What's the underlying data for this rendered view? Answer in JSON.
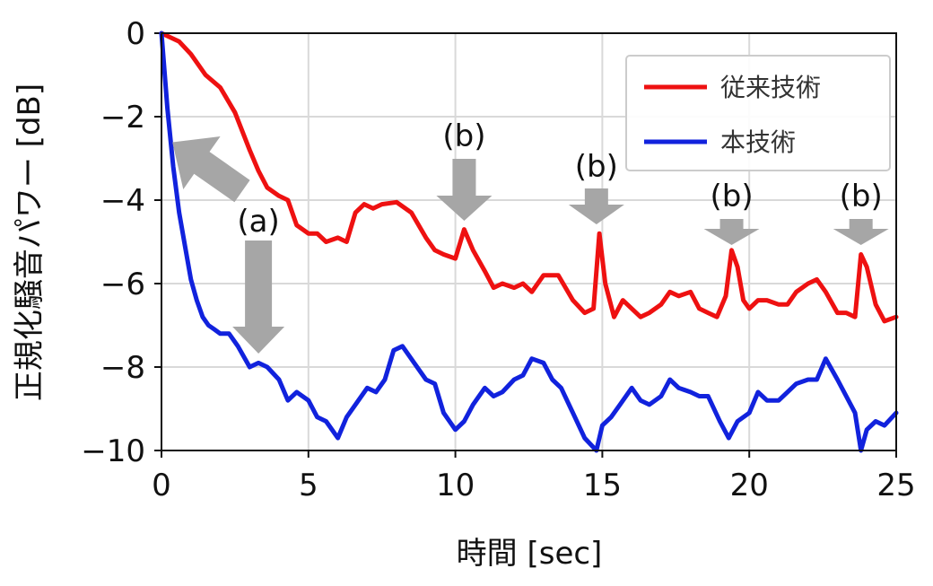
{
  "chart_data": {
    "type": "line",
    "xlabel": "時間 [sec]",
    "ylabel": "正規化騒音パワー [dB]",
    "xlim": [
      0,
      25
    ],
    "ylim": [
      -10,
      0
    ],
    "xticks": [
      "0",
      "5",
      "10",
      "15",
      "20",
      "25"
    ],
    "yticks": [
      "0",
      "−2",
      "−4",
      "−6",
      "−8",
      "−10"
    ],
    "grid": true,
    "legend_placement": "top-right",
    "series": [
      {
        "name": "従来技術",
        "color": "#ee1111",
        "x": [
          0,
          0.3,
          0.6,
          1.0,
          1.5,
          2.0,
          2.5,
          3.0,
          3.3,
          3.6,
          4.0,
          4.3,
          4.6,
          5.0,
          5.3,
          5.6,
          6.0,
          6.3,
          6.6,
          6.9,
          7.2,
          7.5,
          8.0,
          8.5,
          9.0,
          9.3,
          9.6,
          10.0,
          10.3,
          10.6,
          11.0,
          11.3,
          11.6,
          12.0,
          12.3,
          12.6,
          13.0,
          13.5,
          14.0,
          14.4,
          14.7,
          14.9,
          15.1,
          15.4,
          15.7,
          16.0,
          16.3,
          16.6,
          17.0,
          17.3,
          17.6,
          18.0,
          18.3,
          18.6,
          18.9,
          19.2,
          19.4,
          19.6,
          19.8,
          20.0,
          20.3,
          20.6,
          21.0,
          21.3,
          21.6,
          22.0,
          22.3,
          22.6,
          23.0,
          23.3,
          23.6,
          23.8,
          24.0,
          24.3,
          24.6,
          25.0
        ],
        "y": [
          0,
          -0.1,
          -0.2,
          -0.5,
          -1.0,
          -1.3,
          -1.9,
          -2.8,
          -3.3,
          -3.7,
          -3.9,
          -4.0,
          -4.6,
          -4.8,
          -4.8,
          -5.0,
          -4.9,
          -5.0,
          -4.3,
          -4.1,
          -4.2,
          -4.1,
          -4.05,
          -4.3,
          -4.9,
          -5.2,
          -5.3,
          -5.4,
          -4.7,
          -5.2,
          -5.7,
          -6.1,
          -6.0,
          -6.1,
          -6.0,
          -6.2,
          -5.8,
          -5.8,
          -6.4,
          -6.7,
          -6.6,
          -4.8,
          -6.0,
          -6.8,
          -6.4,
          -6.6,
          -6.8,
          -6.7,
          -6.5,
          -6.2,
          -6.3,
          -6.2,
          -6.6,
          -6.7,
          -6.8,
          -6.3,
          -5.2,
          -5.6,
          -6.4,
          -6.6,
          -6.4,
          -6.4,
          -6.5,
          -6.5,
          -6.2,
          -6.0,
          -5.9,
          -6.2,
          -6.7,
          -6.7,
          -6.8,
          -5.3,
          -5.6,
          -6.5,
          -6.9,
          -6.8
        ]
      },
      {
        "name": "本技術",
        "color": "#1122dd",
        "x": [
          0,
          0.2,
          0.4,
          0.6,
          0.8,
          1.0,
          1.2,
          1.4,
          1.6,
          1.8,
          2.0,
          2.3,
          2.6,
          3.0,
          3.3,
          3.6,
          4.0,
          4.3,
          4.6,
          5.0,
          5.3,
          5.6,
          6.0,
          6.3,
          6.6,
          7.0,
          7.3,
          7.6,
          7.9,
          8.2,
          8.6,
          9.0,
          9.3,
          9.6,
          10.0,
          10.3,
          10.6,
          11.0,
          11.3,
          11.6,
          12.0,
          12.3,
          12.6,
          13.0,
          13.3,
          13.6,
          14.0,
          14.4,
          14.8,
          15.0,
          15.3,
          15.6,
          16.0,
          16.3,
          16.6,
          17.0,
          17.3,
          17.6,
          18.0,
          18.3,
          18.6,
          19.0,
          19.3,
          19.6,
          20.0,
          20.3,
          20.6,
          21.0,
          21.3,
          21.6,
          22.0,
          22.3,
          22.6,
          23.0,
          23.3,
          23.6,
          23.8,
          24.0,
          24.3,
          24.6,
          25.0
        ],
        "y": [
          0,
          -1.8,
          -3.2,
          -4.3,
          -5.1,
          -5.9,
          -6.4,
          -6.8,
          -7.0,
          -7.1,
          -7.2,
          -7.2,
          -7.5,
          -8.0,
          -7.9,
          -8.0,
          -8.3,
          -8.8,
          -8.6,
          -8.8,
          -9.2,
          -9.3,
          -9.7,
          -9.2,
          -8.9,
          -8.5,
          -8.6,
          -8.3,
          -7.6,
          -7.5,
          -7.9,
          -8.3,
          -8.4,
          -9.1,
          -9.5,
          -9.3,
          -8.9,
          -8.5,
          -8.7,
          -8.6,
          -8.3,
          -8.2,
          -7.8,
          -7.9,
          -8.3,
          -8.5,
          -9.1,
          -9.7,
          -10.0,
          -9.4,
          -9.2,
          -8.9,
          -8.5,
          -8.8,
          -8.9,
          -8.7,
          -8.3,
          -8.5,
          -8.6,
          -8.7,
          -8.7,
          -9.3,
          -9.7,
          -9.3,
          -9.1,
          -8.6,
          -8.8,
          -8.8,
          -8.6,
          -8.4,
          -8.3,
          -8.3,
          -7.8,
          -8.3,
          -8.7,
          -9.1,
          -10.0,
          -9.5,
          -9.3,
          -9.4,
          -9.1
        ]
      }
    ],
    "annotations": [
      {
        "text": "(a)",
        "x": 3.3,
        "y": -4.5
      },
      {
        "text": "(b)",
        "x": 10.3,
        "y": -2.5
      },
      {
        "text": "(b)",
        "x": 14.8,
        "y": -3.2
      },
      {
        "text": "(b)",
        "x": 19.4,
        "y": -3.9
      },
      {
        "text": "(b)",
        "x": 23.8,
        "y": -3.9
      }
    ]
  }
}
